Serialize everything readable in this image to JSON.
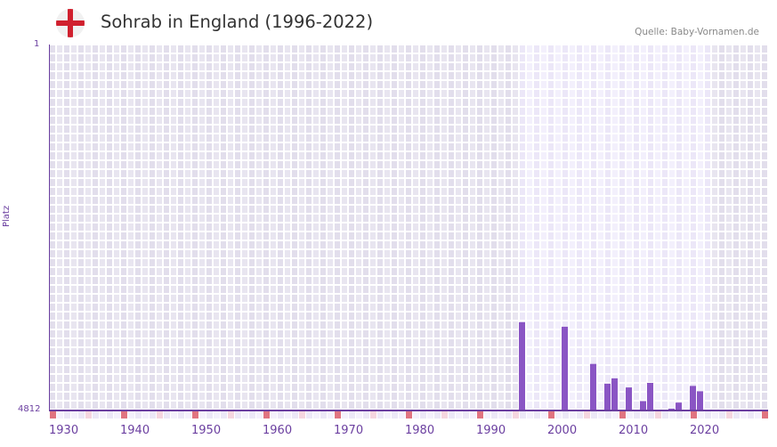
{
  "header": {
    "title": "Sohrab in England (1996-2022)",
    "flag_icon": "england-flag-icon",
    "source": "Quelle: Baby-Vornamen.de"
  },
  "axes": {
    "y_top_label": "1",
    "y_bottom_label": "4812",
    "y_title": "Platz",
    "x_labels": [
      "1930",
      "1940",
      "1950",
      "1960",
      "1970",
      "1980",
      "1990",
      "2000",
      "2010",
      "2020"
    ]
  },
  "colors": {
    "bar": "#8a55c4",
    "axis": "#6b3fa0",
    "decade_marker": "#e07480",
    "half_decade_marker": "#f5d6df",
    "bg_outside": "#e4e0ee",
    "bg_inside": "#efeafa"
  },
  "chart_data": {
    "type": "bar",
    "title": "Sohrab in England (1996-2022)",
    "xlabel": "",
    "ylabel": "Platz",
    "y_inverted": true,
    "ylim": [
      1,
      4812
    ],
    "xlim": [
      1930,
      2030
    ],
    "highlight_range": [
      1996,
      2022
    ],
    "x": [
      1996,
      2002,
      2006,
      2008,
      2009,
      2011,
      2013,
      2014,
      2017,
      2018,
      2020,
      2021
    ],
    "values": [
      3660,
      3720,
      4210,
      4470,
      4400,
      4520,
      4700,
      4460,
      4800,
      4720,
      4500,
      4570
    ],
    "legend": [],
    "grid": true
  }
}
